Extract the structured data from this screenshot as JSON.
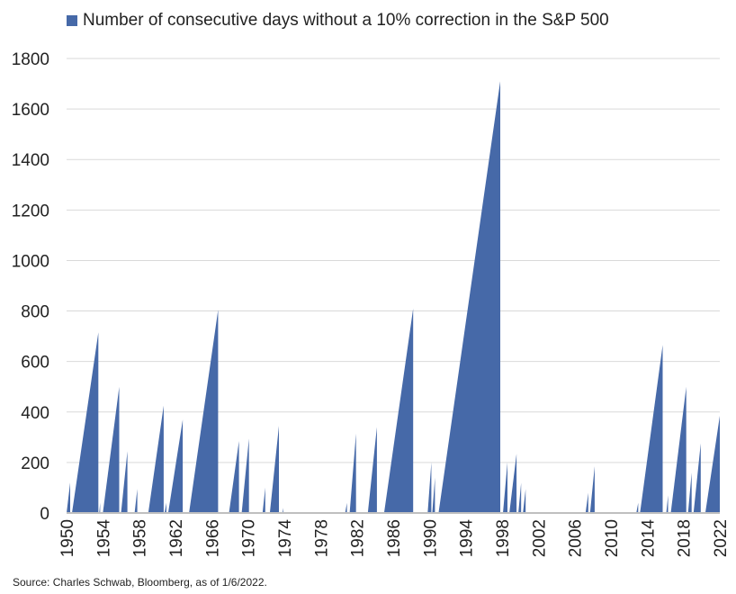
{
  "legend_label": "Number of consecutive days without a 10% correction in the S&P 500",
  "source": "Source: Charles Schwab, Bloomberg, as of 1/6/2022.",
  "colors": {
    "area": "#4669a8",
    "grid": "#d9d9d9",
    "axis": "#bfbfbf",
    "text": "#222222"
  },
  "chart_data": {
    "type": "area",
    "title": "",
    "xlabel": "",
    "ylabel": "",
    "xlim": [
      1950,
      2022
    ],
    "ylim": [
      0,
      1800
    ],
    "grid": "horizontal",
    "legend": "top-left",
    "y_ticks": [
      0,
      200,
      400,
      600,
      800,
      1000,
      1200,
      1400,
      1600,
      1800
    ],
    "x_ticks": [
      1950,
      1954,
      1958,
      1962,
      1966,
      1970,
      1974,
      1978,
      1982,
      1986,
      1990,
      1994,
      1998,
      2002,
      2006,
      2010,
      2014,
      2018,
      2022
    ],
    "series": [
      {
        "name": "Number of consecutive days without a 10% correction in the S&P 500",
        "segments": [
          [
            [
              1950.0,
              0
            ],
            [
              1950.4,
              120
            ]
          ],
          [
            [
              1950.6,
              0
            ],
            [
              1953.5,
              715
            ]
          ],
          [
            [
              1953.6,
              0
            ],
            [
              1953.7,
              40
            ]
          ],
          [
            [
              1954.0,
              0
            ],
            [
              1955.8,
              500
            ]
          ],
          [
            [
              1956.0,
              0
            ],
            [
              1956.7,
              245
            ]
          ],
          [
            [
              1957.5,
              0
            ],
            [
              1957.8,
              95
            ]
          ],
          [
            [
              1959.0,
              0
            ],
            [
              1960.7,
              425
            ]
          ],
          [
            [
              1960.8,
              0
            ],
            [
              1961.0,
              40
            ]
          ],
          [
            [
              1961.2,
              0
            ],
            [
              1962.8,
              370
            ]
          ],
          [
            [
              1963.5,
              0
            ],
            [
              1966.7,
              805
            ]
          ],
          [
            [
              1967.9,
              0
            ],
            [
              1969.0,
              285
            ]
          ],
          [
            [
              1969.3,
              0
            ],
            [
              1970.1,
              295
            ]
          ],
          [
            [
              1971.6,
              0
            ],
            [
              1971.9,
              100
            ]
          ],
          [
            [
              1972.4,
              0
            ],
            [
              1973.4,
              345
            ]
          ],
          [
            [
              1973.8,
              0
            ],
            [
              1973.9,
              20
            ]
          ],
          [
            [
              1980.7,
              0
            ],
            [
              1980.9,
              40
            ]
          ],
          [
            [
              1981.2,
              0
            ],
            [
              1981.9,
              315
            ]
          ],
          [
            [
              1983.2,
              0
            ],
            [
              1984.2,
              340
            ]
          ],
          [
            [
              1985.0,
              0
            ],
            [
              1988.2,
              810
            ]
          ],
          [
            [
              1989.8,
              0
            ],
            [
              1990.2,
              200
            ]
          ],
          [
            [
              1990.3,
              0
            ],
            [
              1990.6,
              140
            ]
          ],
          [
            [
              1991.0,
              0
            ],
            [
              1997.8,
              1710
            ]
          ],
          [
            [
              1998.1,
              0
            ],
            [
              1998.6,
              200
            ]
          ],
          [
            [
              1998.8,
              0
            ],
            [
              1999.6,
              235
            ]
          ],
          [
            [
              1999.8,
              0
            ],
            [
              2000.1,
              120
            ]
          ],
          [
            [
              2000.3,
              0
            ],
            [
              2000.6,
              95
            ]
          ],
          [
            [
              2007.2,
              0
            ],
            [
              2007.5,
              80
            ]
          ],
          [
            [
              2007.7,
              0
            ],
            [
              2008.2,
              185
            ]
          ],
          [
            [
              2012.8,
              0
            ],
            [
              2013.0,
              40
            ]
          ],
          [
            [
              2013.2,
              0
            ],
            [
              2015.7,
              665
            ]
          ],
          [
            [
              2016.1,
              0
            ],
            [
              2016.3,
              70
            ]
          ],
          [
            [
              2016.6,
              0
            ],
            [
              2018.3,
              500
            ]
          ],
          [
            [
              2018.5,
              0
            ],
            [
              2018.9,
              160
            ]
          ],
          [
            [
              2019.1,
              0
            ],
            [
              2019.9,
              275
            ]
          ],
          [
            [
              2020.4,
              0
            ],
            [
              2022.0,
              385
            ]
          ]
        ]
      }
    ]
  }
}
